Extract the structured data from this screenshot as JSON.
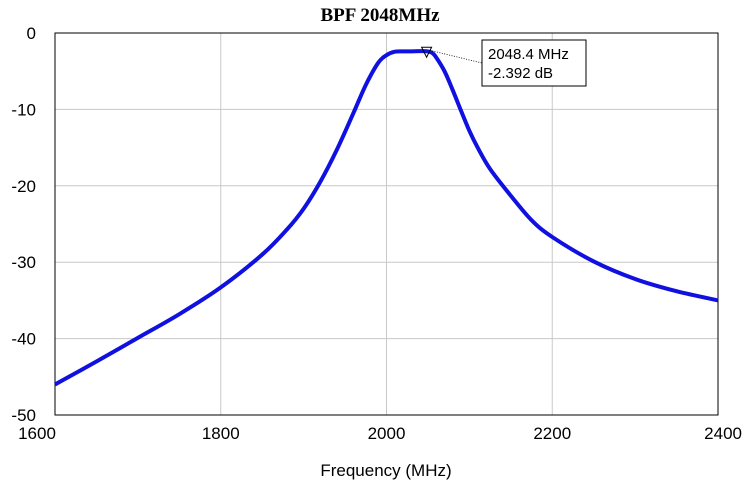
{
  "chart_data": {
    "type": "line",
    "title": "BPF 2048MHz",
    "xlabel": "Frequency (MHz)",
    "ylabel": "",
    "xlim": [
      1600,
      2400
    ],
    "ylim": [
      -50,
      0
    ],
    "x_ticks": [
      "1600",
      "1800",
      "2000",
      "2200",
      "2400"
    ],
    "y_ticks": [
      "0",
      "-10",
      "-20",
      "-30",
      "-40",
      "-50"
    ],
    "grid": true,
    "series": [
      {
        "name": "",
        "color": "#1010e0",
        "x": [
          1600,
          1650,
          1700,
          1750,
          1800,
          1850,
          1880,
          1900,
          1920,
          1940,
          1960,
          1975,
          1990,
          2000,
          2010,
          2020,
          2030,
          2040,
          2048.4,
          2055,
          2060,
          2070,
          2080,
          2090,
          2100,
          2110,
          2125,
          2150,
          2175,
          2200,
          2250,
          2300,
          2350,
          2400
        ],
        "y": [
          -46,
          -43,
          -39.9,
          -36.8,
          -33.3,
          -29,
          -25.7,
          -23,
          -19.5,
          -15.3,
          -10.5,
          -6.8,
          -3.9,
          -2.9,
          -2.45,
          -2.4,
          -2.4,
          -2.38,
          -2.392,
          -2.6,
          -3.2,
          -5,
          -7.5,
          -10.2,
          -12.8,
          -15,
          -17.8,
          -21.3,
          -24.5,
          -26.7,
          -29.9,
          -32.2,
          -33.8,
          -35
        ]
      }
    ],
    "marker": {
      "x": 2048.4,
      "y": -2.392,
      "label_line1": "2048.4 MHz",
      "label_line2": "-2.392 dB"
    }
  }
}
